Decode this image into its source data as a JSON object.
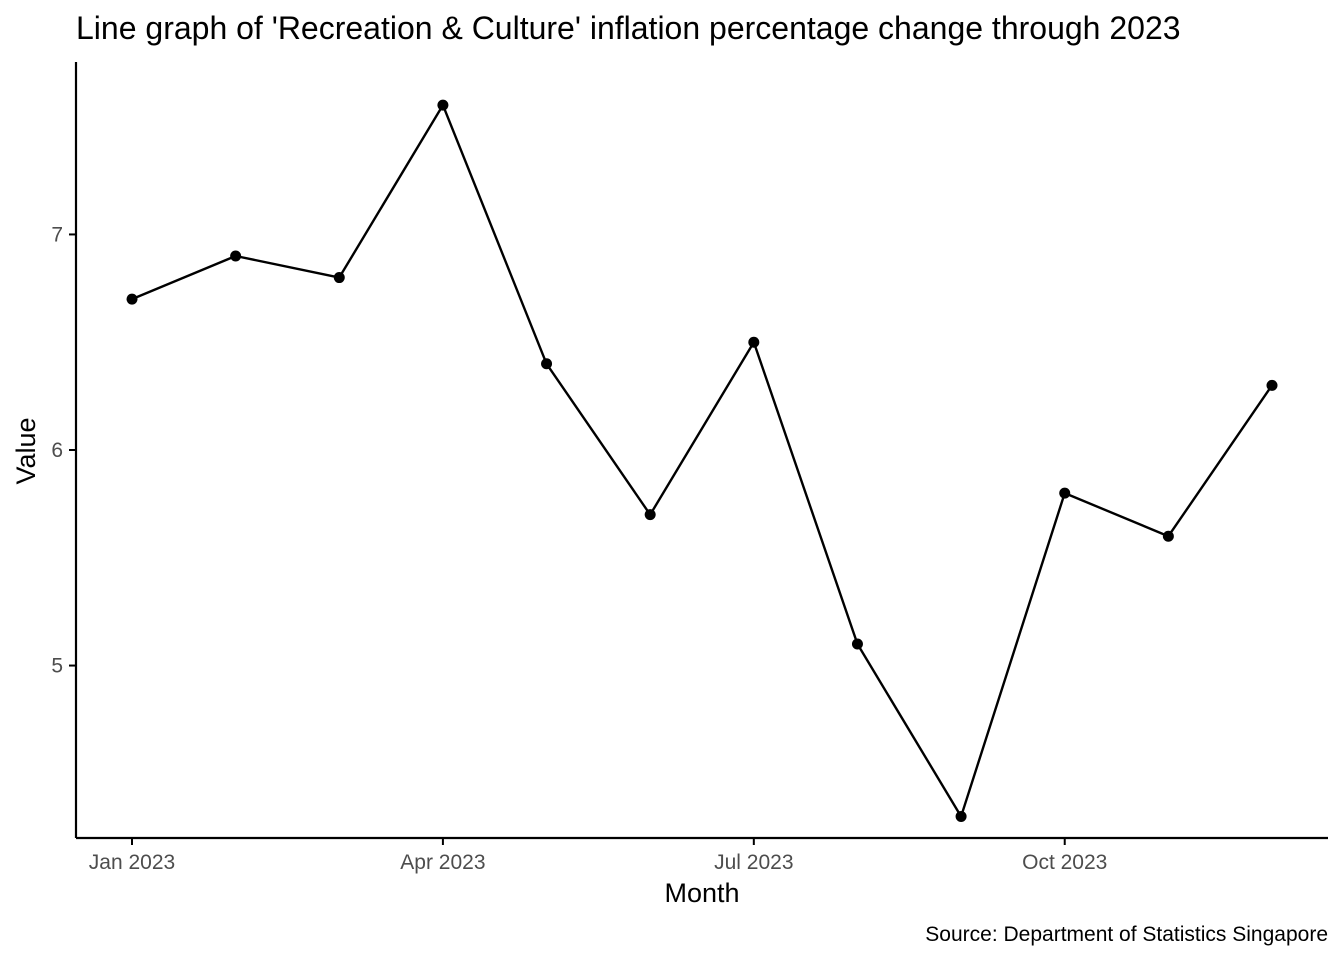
{
  "chart_data": {
    "type": "line",
    "title": "Line graph of 'Recreation & Culture' inflation percentage change through 2023",
    "xlabel": "Month",
    "ylabel": "Value",
    "caption": "Source: Department of Statistics Singapore",
    "x": [
      "2023-01",
      "2023-02",
      "2023-03",
      "2023-04",
      "2023-05",
      "2023-06",
      "2023-07",
      "2023-08",
      "2023-09",
      "2023-10",
      "2023-11",
      "2023-12"
    ],
    "x_tick_labels": [
      {
        "x": "2023-01",
        "label": "Jan 2023"
      },
      {
        "x": "2023-04",
        "label": "Apr 2023"
      },
      {
        "x": "2023-07",
        "label": "Jul 2023"
      },
      {
        "x": "2023-10",
        "label": "Oct 2023"
      }
    ],
    "series": [
      {
        "values": [
          6.7,
          6.9,
          6.8,
          7.6,
          6.4,
          5.7,
          6.5,
          5.1,
          4.3,
          5.8,
          5.6,
          6.3
        ]
      }
    ],
    "y_ticks": [
      5,
      6,
      7
    ],
    "ylim": [
      4.2,
      7.8
    ],
    "grid": false,
    "legend": "none",
    "colors": {
      "line": "#000000",
      "point": "#000000",
      "axis": "#000000",
      "tick_label": "#4d4d4d"
    }
  }
}
